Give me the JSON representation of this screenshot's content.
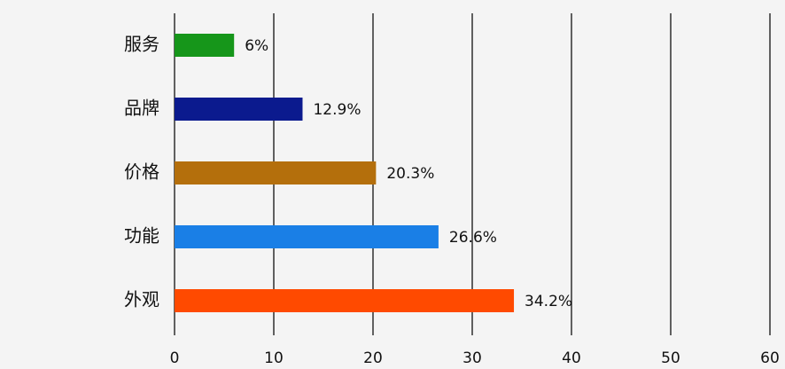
{
  "chart_data": {
    "type": "bar",
    "orientation": "horizontal",
    "categories": [
      "服务",
      "品牌",
      "价格",
      "功能",
      "外观"
    ],
    "values": [
      6,
      12.9,
      20.3,
      26.6,
      34.2
    ],
    "value_labels": [
      "6%",
      "12.9%",
      "20.3%",
      "26.6%",
      "34.2%"
    ],
    "colors": [
      "#16961a",
      "#0b1a8e",
      "#b46f0c",
      "#1a7fe6",
      "#ff4a00"
    ],
    "xlim": [
      0,
      60
    ],
    "xticks": [
      0,
      10,
      20,
      30,
      40,
      50,
      60
    ],
    "grid": true
  }
}
